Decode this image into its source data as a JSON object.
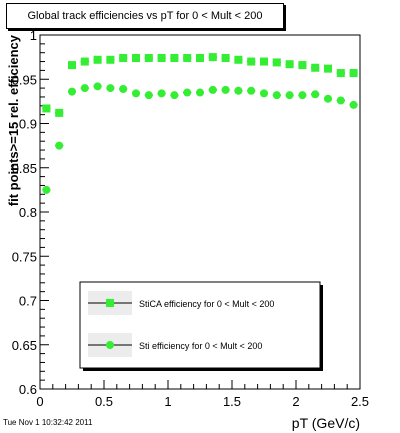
{
  "chart_data": {
    "type": "scatter",
    "title": "Global track efficiencies vs pT for 0 < Mult < 200",
    "xlabel": "pT (GeV/c)",
    "ylabel": "fit points>=15 rel. efficiency",
    "xlim": [
      0,
      2.5
    ],
    "ylim": [
      0.6,
      1.0
    ],
    "x_ticks": [
      "0",
      "0.5",
      "1",
      "1.5",
      "2",
      "2.5"
    ],
    "y_ticks": [
      "0.6",
      "0.65",
      "0.7",
      "0.75",
      "0.8",
      "0.85",
      "0.9",
      "0.95",
      "1"
    ],
    "grid": false,
    "legend_position": "bottom-center",
    "series": [
      {
        "name": "StiCA efficiency  for 0 < Mult < 200",
        "marker": "square",
        "color": "#33ee33",
        "x": [
          0.05,
          0.15,
          0.25,
          0.35,
          0.45,
          0.55,
          0.65,
          0.75,
          0.85,
          0.95,
          1.05,
          1.15,
          1.25,
          1.35,
          1.45,
          1.55,
          1.65,
          1.75,
          1.85,
          1.95,
          2.05,
          2.15,
          2.25,
          2.35,
          2.45
        ],
        "y": [
          0.917,
          0.912,
          0.966,
          0.97,
          0.972,
          0.972,
          0.974,
          0.974,
          0.974,
          0.974,
          0.974,
          0.974,
          0.974,
          0.975,
          0.974,
          0.972,
          0.97,
          0.97,
          0.969,
          0.967,
          0.966,
          0.963,
          0.962,
          0.957,
          0.957
        ]
      },
      {
        "name": "Sti efficiency  for 0 < Mult < 200",
        "marker": "circle",
        "color": "#33ee33",
        "x": [
          0.05,
          0.15,
          0.25,
          0.35,
          0.45,
          0.55,
          0.65,
          0.75,
          0.85,
          0.95,
          1.05,
          1.15,
          1.25,
          1.35,
          1.45,
          1.55,
          1.65,
          1.75,
          1.85,
          1.95,
          2.05,
          2.15,
          2.25,
          2.35,
          2.45
        ],
        "y": [
          0.825,
          0.875,
          0.936,
          0.94,
          0.942,
          0.94,
          0.939,
          0.934,
          0.932,
          0.934,
          0.932,
          0.935,
          0.935,
          0.938,
          0.938,
          0.937,
          0.937,
          0.934,
          0.932,
          0.932,
          0.932,
          0.933,
          0.928,
          0.926,
          0.921
        ]
      }
    ]
  },
  "footer": {
    "timestamp": "Tue Nov  1 10:32:42 2011"
  }
}
